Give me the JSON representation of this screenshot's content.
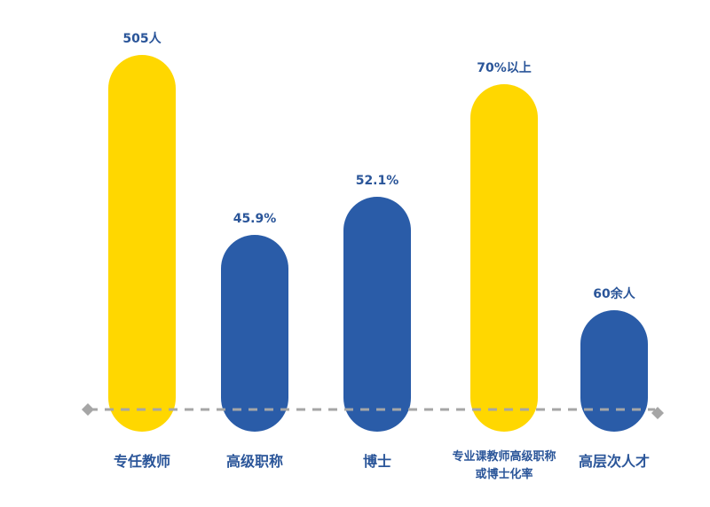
{
  "chart_data": {
    "type": "bar",
    "categories": [
      "专任教师",
      "高级职称",
      "博士",
      "专业课教师高级职称或博士化率",
      "高层次人才"
    ],
    "category_lines": [
      [
        "专任教师"
      ],
      [
        "高级职称"
      ],
      [
        "博士"
      ],
      [
        "专业课教师高级职称",
        "或博士化率"
      ],
      [
        "高层次人才"
      ]
    ],
    "value_labels": [
      "505人",
      "45.9%",
      "52.1%",
      "70%以上",
      "60余人"
    ],
    "bar_colors": [
      "#FFD700",
      "#2A5CA8",
      "#2A5CA8",
      "#FFD700",
      "#2A5CA8"
    ],
    "baseline_color": "#A6A6A6",
    "label_color": "#2A5599"
  }
}
